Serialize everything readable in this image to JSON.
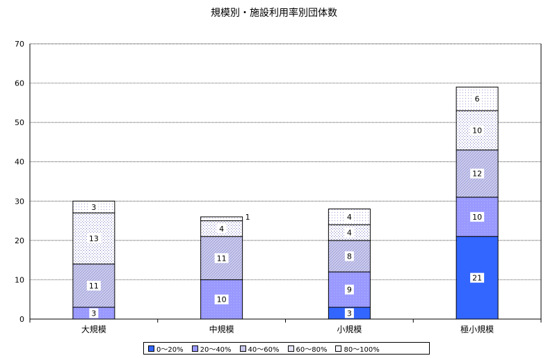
{
  "chart_data": {
    "type": "bar",
    "stacked": true,
    "title": "規模別・施設利用率別団体数",
    "categories": [
      "大規模",
      "中規模",
      "小規模",
      "極小規模"
    ],
    "series": [
      {
        "name": "0～20%",
        "values": [
          0,
          0,
          3,
          21
        ],
        "color": "#3366ff"
      },
      {
        "name": "20～40%",
        "values": [
          3,
          10,
          9,
          10
        ],
        "color": "#9999ff"
      },
      {
        "name": "40～60%",
        "values": [
          11,
          11,
          8,
          12
        ],
        "color": "#c8c8ec"
      },
      {
        "name": "60～80%",
        "values": [
          13,
          4,
          4,
          10
        ],
        "color": "#e4e4f6"
      },
      {
        "name": "80～100%",
        "values": [
          3,
          1,
          4,
          6
        ],
        "color": "#f6f6fc"
      }
    ],
    "ylim": [
      0,
      70
    ],
    "yticks": [
      0,
      10,
      20,
      30,
      40,
      50,
      60,
      70
    ],
    "grid": "dashed-horizontal",
    "legend": "bottom",
    "xlabel": "",
    "ylabel": ""
  }
}
